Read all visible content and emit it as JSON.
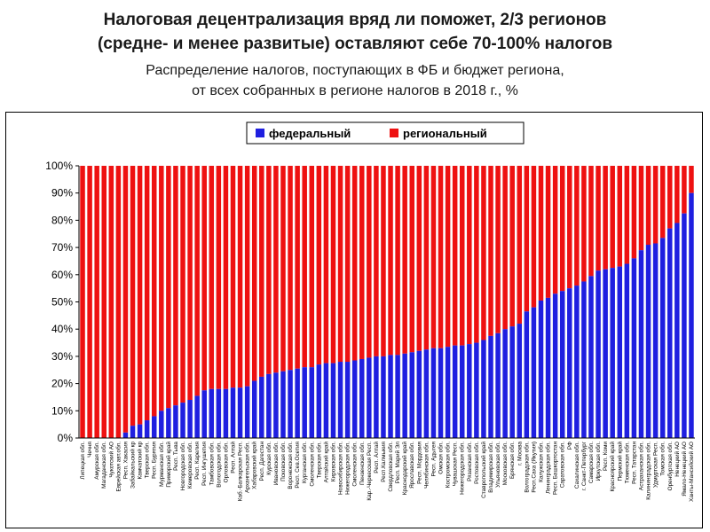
{
  "header": {
    "title_line1": "Налоговая децентрализация вряд ли поможет, 2/3 регионов",
    "title_line2": "(средне- и менее развитые) оставляют себе 70-100% налогов",
    "subtitle_line1": "Распределение налогов, поступающих в ФБ и бюджет региона,",
    "subtitle_line2": "от всех собранных в регионе налогов в 2018 г., %"
  },
  "colors": {
    "federal": "#1f1fe0",
    "regional": "#ee1111"
  },
  "chart_data": {
    "type": "bar",
    "stacked": true,
    "normalized": true,
    "xlabel": "",
    "ylabel": "",
    "ylim": [
      0,
      100
    ],
    "yticks": [
      "0%",
      "10%",
      "20%",
      "30%",
      "40%",
      "50%",
      "60%",
      "70%",
      "80%",
      "90%",
      "100%"
    ],
    "grid": false,
    "legend_position": "top-center",
    "categories": [
      "Липецкая обл.",
      "Чечня",
      "Амурская обл.",
      "Магаданская обл.",
      "Чукотский АО",
      "Еврейская авт.обл.",
      "Респ. Хакасия",
      "Забайкальский кр",
      "Камчатский кр",
      "Тверская обл.",
      "Респ. Бурятия",
      "Мурманская обл.",
      "Приморский край",
      "Респ. Тыва",
      "Новгородская обл.",
      "Кемеровская обл.",
      "Респ. Карелия",
      "Респ. Ингушетия",
      "Тамбовская обл.",
      "Вологодская обл.",
      "Орловская обл.",
      "Респ. Алтай",
      "Каб.-Балкарская Респ.",
      "Архангельская обл.",
      "Хабаровский край",
      "Респ. Дагестан",
      "Курская обл.",
      "Ивановская обл.",
      "Псковская обл.",
      "Воронежская обл.",
      "Респ. Сев.Осетия",
      "Курганская обл.",
      "Смоленская обл.",
      "Тверская обл.",
      "Алтайский край",
      "Кировская обл.",
      "Новосибирская обл.",
      "Нижегородская обл.",
      "Смоленская обл.",
      "Пензенская обл.",
      "Кар.-Черкесская Респ.",
      "Респ. Алтай",
      "Респ.Калмыкия",
      "Свердловская обл.",
      "Респ. Марий Эл",
      "Краснодарский край",
      "Ярославская обл.",
      "Респ. Мордовия",
      "Челябинская обл.",
      "Респ. Адыгея",
      "Омская обл.",
      "Костромская обл.",
      "Чувашская Респ.",
      "Нижегородская обл.",
      "Рязанская обл.",
      "Ростовская обл.",
      "Ставропольский край",
      "Владимирская обл.",
      "Ульяновская обл.",
      "Московская обл.",
      "Брянская обл.",
      "г. Москва",
      "Волгоградская обл.",
      "Респ.Саха (Якутия)",
      "Калужская обл.",
      "Ленинградская обл.",
      "Респ. Башкортостан",
      "Саратовская обл.",
      "РФ",
      "Сахалинская обл.",
      "г. Санкт-Петербург",
      "Самарская обл.",
      "Иркутская обл.",
      "Респ. Коми",
      "Красноярский край",
      "Пермский край",
      "Тюменская обл.",
      "Респ. Татарстан",
      "Астраханская обл.",
      "Калининградская обл.",
      "Удмуртская Респ.",
      "Томская обл.",
      "Оренбургская обл.",
      "Ненецкий АО",
      "Ямало-Ненецкий АО",
      "Ханты-Мансийский АО"
    ],
    "series": [
      {
        "name": "федеральный",
        "values": [
          0,
          0,
          0,
          0,
          0,
          0,
          2,
          4.5,
          5,
          6.5,
          8,
          10,
          11,
          12,
          13,
          14,
          15.5,
          17.5,
          18,
          18,
          18,
          18.5,
          18.5,
          19,
          21,
          22.5,
          23.5,
          24,
          24.5,
          25,
          25.5,
          26,
          26,
          27,
          27.5,
          27.5,
          28,
          28,
          28.5,
          29,
          29.5,
          30,
          30,
          30.5,
          30.5,
          31,
          31.5,
          32,
          32.5,
          33,
          33,
          33.5,
          34,
          34,
          34.5,
          35,
          36,
          37.5,
          38.5,
          40,
          41,
          42,
          46.5,
          48,
          50.5,
          51.5,
          53,
          54,
          55,
          56,
          57.5,
          59.5,
          61.5,
          62,
          62.5,
          63,
          64,
          66,
          69,
          71,
          71.5,
          73.5,
          77,
          79,
          82.5,
          90
        ]
      },
      {
        "name": "региональный",
        "values": [
          100,
          100,
          100,
          100,
          100,
          100,
          98,
          95.5,
          95,
          93.5,
          92,
          90,
          89,
          88,
          87,
          86,
          84.5,
          82.5,
          82,
          82,
          82,
          81.5,
          81.5,
          81,
          79,
          77.5,
          76.5,
          76,
          75.5,
          75,
          74.5,
          74,
          74,
          73,
          72.5,
          72.5,
          72,
          72,
          71.5,
          71,
          70.5,
          70,
          70,
          69.5,
          69.5,
          69,
          68.5,
          68,
          67.5,
          67,
          67,
          66.5,
          66,
          66,
          65.5,
          65,
          64,
          62.5,
          61.5,
          60,
          59,
          58,
          53.5,
          52,
          49.5,
          48.5,
          47,
          46,
          45,
          44,
          42.5,
          40.5,
          38.5,
          38,
          37.5,
          37,
          36,
          34,
          31,
          29,
          28.5,
          26.5,
          23,
          21,
          17.5,
          10
        ]
      }
    ]
  }
}
